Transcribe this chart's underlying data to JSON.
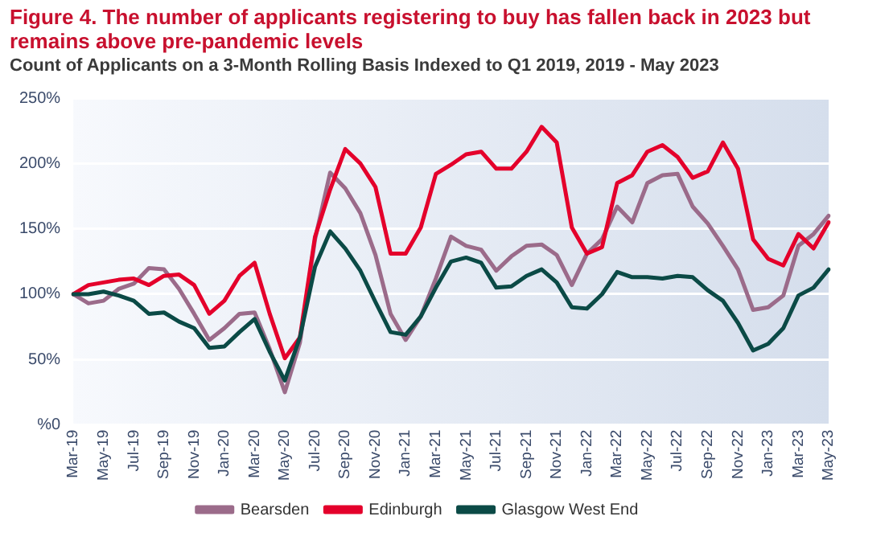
{
  "chart_data": {
    "type": "line",
    "title": "Figure 4. The number of applicants registering to buy has fallen back in 2023 but remains above pre-pandemic levels",
    "subtitle": "Count of Applicants on a 3-Month Rolling Basis Indexed to Q1 2019, 2019 - May 2023",
    "categories": [
      "Mar-19",
      null,
      "May-19",
      null,
      "Jul-19",
      null,
      "Sep-19",
      null,
      "Nov-19",
      null,
      "Jan-20",
      null,
      "Mar-20",
      null,
      "May-20",
      null,
      "Jul-20",
      null,
      "Sep-20",
      null,
      "Nov-20",
      null,
      "Jan-21",
      null,
      "Mar-21",
      null,
      "May-21",
      null,
      "Jul-21",
      null,
      "Sep-21",
      null,
      "Nov-21",
      null,
      "Jan-22",
      null,
      "Mar-22",
      null,
      "May-22",
      null,
      "Jul-22",
      null,
      "Sep-22",
      null,
      "Nov-22",
      null,
      "Jan-23",
      null,
      "Mar-23",
      null,
      "May-23"
    ],
    "series": [
      {
        "name": "Bearsden",
        "color": "#9b6b8a",
        "values": [
          100,
          93,
          95,
          104,
          108,
          120,
          119,
          104,
          85,
          65,
          74,
          85,
          86,
          58,
          25,
          63,
          142,
          193,
          181,
          162,
          130,
          85,
          65,
          83,
          112,
          144,
          137,
          134,
          118,
          129,
          137,
          138,
          130,
          107,
          131,
          142,
          167,
          155,
          185,
          191,
          192,
          167,
          154,
          137,
          119,
          88,
          90,
          99,
          137,
          146,
          160
        ]
      },
      {
        "name": "Edinburgh",
        "color": "#e4002b",
        "values": [
          100,
          107,
          109,
          111,
          112,
          107,
          114,
          115,
          107,
          85,
          95,
          114,
          124,
          85,
          51,
          67,
          144,
          180,
          211,
          200,
          182,
          131,
          131,
          151,
          192,
          199,
          207,
          209,
          196,
          196,
          209,
          228,
          216,
          151,
          131,
          136,
          185,
          191,
          209,
          214,
          205,
          189,
          194,
          216,
          196,
          142,
          127,
          122,
          146,
          135,
          155
        ]
      },
      {
        "name": "Glasgow West End",
        "color": "#0b4a46",
        "values": [
          100,
          100,
          102,
          99,
          95,
          85,
          86,
          79,
          74,
          59,
          60,
          71,
          81,
          56,
          34,
          67,
          121,
          148,
          135,
          118,
          94,
          71,
          69,
          83,
          105,
          125,
          128,
          124,
          105,
          106,
          114,
          119,
          109,
          90,
          89,
          100,
          117,
          113,
          113,
          112,
          114,
          113,
          103,
          95,
          78,
          57,
          62,
          74,
          99,
          105,
          119
        ]
      }
    ],
    "ylim": [
      0,
      250
    ],
    "yticks": [
      {
        "value": 0,
        "label": "%0"
      },
      {
        "value": 50,
        "label": "50%"
      },
      {
        "value": 100,
        "label": "100%"
      },
      {
        "value": 150,
        "label": "150%"
      },
      {
        "value": 200,
        "label": "200%"
      },
      {
        "value": 250,
        "label": "250%"
      }
    ],
    "grid": "y",
    "legend": "bottom",
    "marker": "none",
    "line_style": "solid"
  }
}
